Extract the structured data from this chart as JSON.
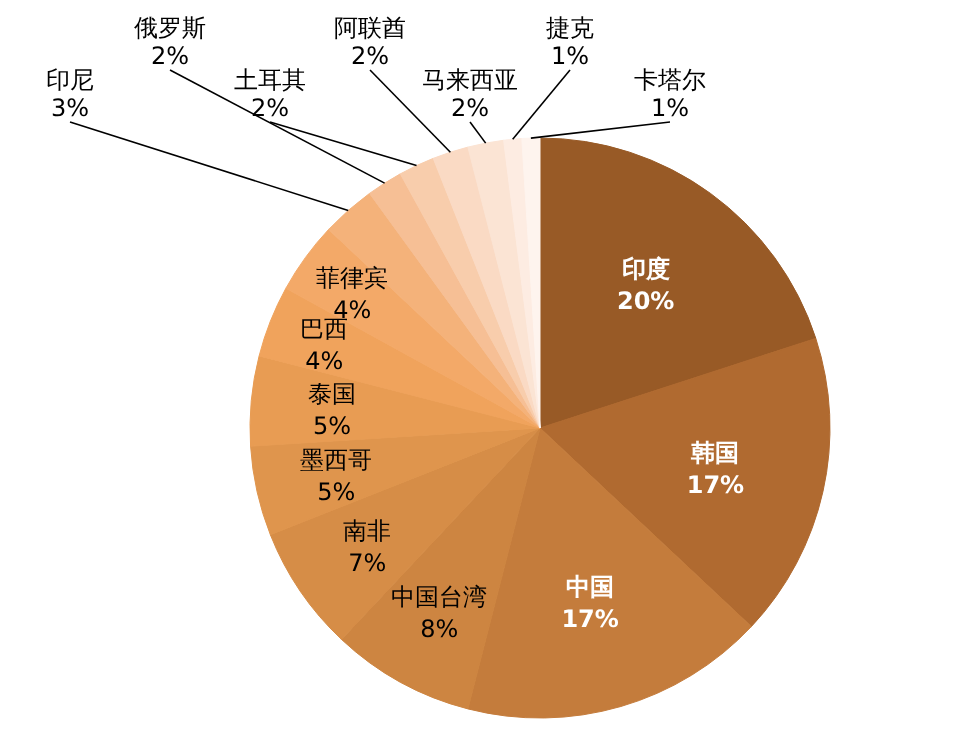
{
  "chart_data": {
    "type": "pie",
    "categories": [
      "印度",
      "韩国",
      "中国",
      "中国台湾",
      "南非",
      "墨西哥",
      "泰国",
      "巴西",
      "菲律宾",
      "印尼",
      "俄罗斯",
      "土耳其",
      "阿联酋",
      "马来西亚",
      "捷克",
      "卡塔尔"
    ],
    "values": [
      20,
      17,
      17,
      8,
      7,
      5,
      5,
      4,
      4,
      3,
      2,
      2,
      2,
      2,
      1,
      1
    ],
    "colors": [
      "#985a26",
      "#b06a30",
      "#c47c3c",
      "#cd8541",
      "#d68d47",
      "#df954d",
      "#e89c53",
      "#f0a35c",
      "#f3a968",
      "#f4b27a",
      "#f6bf95",
      "#f8cdac",
      "#fadac4",
      "#fbe4d4",
      "#fdece2",
      "#fef4ee"
    ],
    "value_labels": [
      "20%",
      "17%",
      "17%",
      "8%",
      "7%",
      "5%",
      "5%",
      "4%",
      "4%",
      "3%",
      "2%",
      "2%",
      "2%",
      "2%",
      "1%",
      "1%"
    ]
  }
}
